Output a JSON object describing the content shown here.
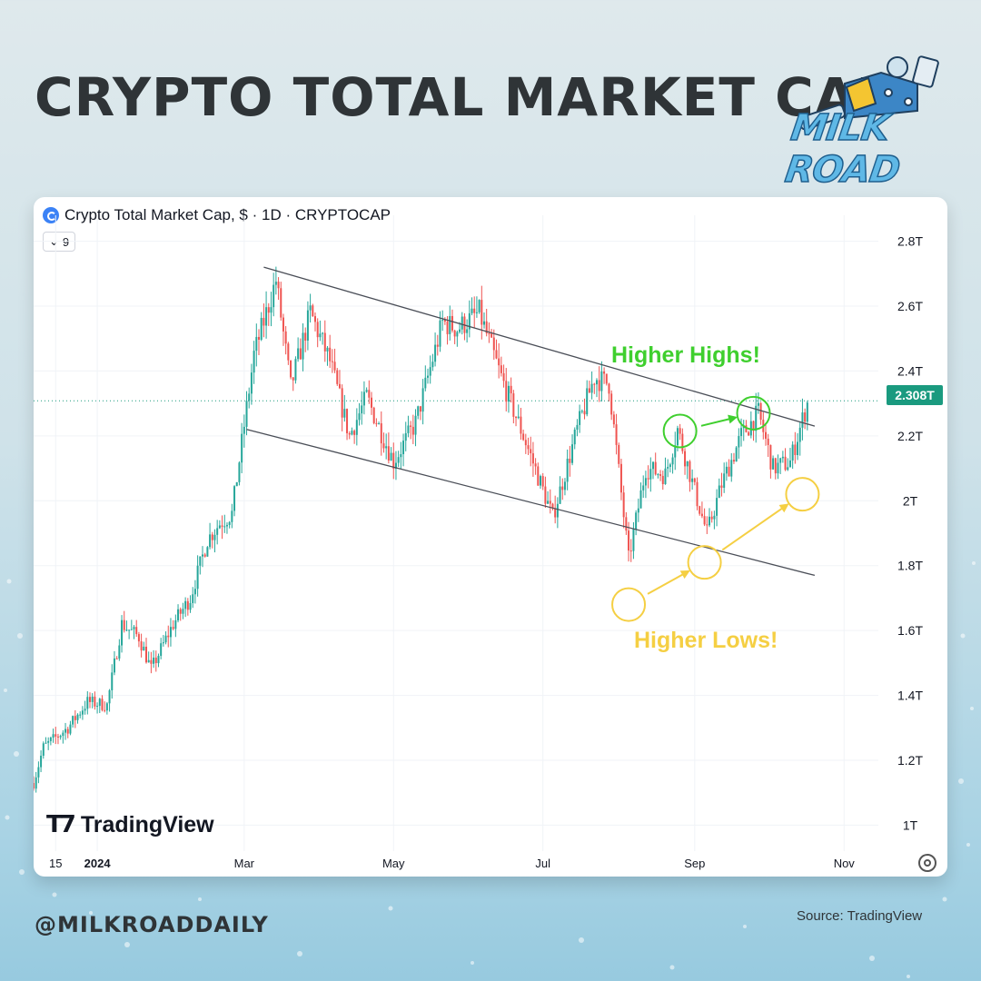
{
  "title": "CRYPTO TOTAL MARKET CAP",
  "brand": {
    "logo_text": "MILK ROAD",
    "logo_icon": "milk-carton-mascot-icon"
  },
  "chart_header": {
    "symbol_label": "Crypto Total Market Cap, $ · 1D · CRYPTOCAP",
    "indicator_count": "9",
    "icon": "crypto-symbol-icon"
  },
  "current_price_label": "2.308T",
  "watermark": "TradingView",
  "handle": "@MILKROADDAILY",
  "source": "Source: TradingView",
  "colors": {
    "up": "#26a69a",
    "down": "#ef5350",
    "higher_highs": "#3fcf2e",
    "higher_lows": "#f5cf43",
    "price_tag": "#1a9a7f"
  },
  "chart_data": {
    "type": "candlestick",
    "interval": "1D",
    "y_unit": "T USD",
    "ylim": [
      0.92,
      2.88
    ],
    "yticks": [
      {
        "value": 1.0,
        "label": "1T"
      },
      {
        "value": 1.2,
        "label": "1.2T"
      },
      {
        "value": 1.4,
        "label": "1.4T"
      },
      {
        "value": 1.6,
        "label": "1.6T"
      },
      {
        "value": 1.8,
        "label": "1.8T"
      },
      {
        "value": 2.0,
        "label": "2T"
      },
      {
        "value": 2.2,
        "label": "2.2T"
      },
      {
        "value": 2.4,
        "label": "2.4T"
      },
      {
        "value": 2.6,
        "label": "2.6T"
      },
      {
        "value": 2.8,
        "label": "2.8T"
      }
    ],
    "x_range": [
      "2023-12-06",
      "2024-11-15"
    ],
    "xticks": [
      {
        "date": "2023-12-15",
        "label": "15"
      },
      {
        "date": "2024-01-01",
        "label": "2024"
      },
      {
        "date": "2024-03-01",
        "label": "Mar"
      },
      {
        "date": "2024-05-01",
        "label": "May"
      },
      {
        "date": "2024-07-01",
        "label": "Jul"
      },
      {
        "date": "2024-09-01",
        "label": "Sep"
      },
      {
        "date": "2024-11-01",
        "label": "Nov"
      }
    ],
    "current_price": 2.308,
    "price_path": [
      [
        "2023-12-06",
        1.13
      ],
      [
        "2023-12-10",
        1.24
      ],
      [
        "2023-12-20",
        1.3
      ],
      [
        "2023-12-28",
        1.38
      ],
      [
        "2024-01-05",
        1.37
      ],
      [
        "2024-01-11",
        1.62
      ],
      [
        "2024-01-18",
        1.58
      ],
      [
        "2024-01-23",
        1.48
      ],
      [
        "2024-02-01",
        1.62
      ],
      [
        "2024-02-08",
        1.7
      ],
      [
        "2024-02-15",
        1.88
      ],
      [
        "2024-02-20",
        1.93
      ],
      [
        "2024-02-25",
        1.96
      ],
      [
        "2024-03-05",
        2.45
      ],
      [
        "2024-03-14",
        2.68
      ],
      [
        "2024-03-20",
        2.35
      ],
      [
        "2024-03-28",
        2.58
      ],
      [
        "2024-04-05",
        2.43
      ],
      [
        "2024-04-13",
        2.2
      ],
      [
        "2024-04-20",
        2.32
      ],
      [
        "2024-05-01",
        2.12
      ],
      [
        "2024-05-10",
        2.24
      ],
      [
        "2024-05-21",
        2.55
      ],
      [
        "2024-05-27",
        2.53
      ],
      [
        "2024-06-05",
        2.58
      ],
      [
        "2024-06-14",
        2.38
      ],
      [
        "2024-06-24",
        2.18
      ],
      [
        "2024-07-05",
        1.95
      ],
      [
        "2024-07-15",
        2.22
      ],
      [
        "2024-07-22",
        2.38
      ],
      [
        "2024-07-28",
        2.36
      ],
      [
        "2024-08-05",
        1.82
      ],
      [
        "2024-08-12",
        2.1
      ],
      [
        "2024-08-20",
        2.08
      ],
      [
        "2024-08-25",
        2.22
      ],
      [
        "2024-09-01",
        2.03
      ],
      [
        "2024-09-06",
        1.9
      ],
      [
        "2024-09-12",
        2.05
      ],
      [
        "2024-09-20",
        2.2
      ],
      [
        "2024-09-27",
        2.27
      ],
      [
        "2024-10-03",
        2.1
      ],
      [
        "2024-10-10",
        2.12
      ],
      [
        "2024-10-15",
        2.25
      ],
      [
        "2024-10-17",
        2.3
      ]
    ],
    "trendlines": [
      {
        "name": "channel-top",
        "from": [
          "2024-03-09",
          2.72
        ],
        "to": [
          "2024-10-20",
          2.23
        ]
      },
      {
        "name": "channel-bottom",
        "from": [
          "2024-03-02",
          2.22
        ],
        "to": [
          "2024-10-20",
          1.77
        ]
      }
    ],
    "annotations": [
      {
        "text": "Higher Highs!",
        "color": "#3fcf2e",
        "markers": [
          [
            "2024-08-26",
            2.215
          ],
          [
            "2024-09-25",
            2.27
          ]
        ]
      },
      {
        "text": "Higher Lows!",
        "color": "#f5cf43",
        "markers": [
          [
            "2024-08-05",
            1.68
          ],
          [
            "2024-09-05",
            1.81
          ],
          [
            "2024-10-15",
            2.02
          ]
        ]
      }
    ]
  }
}
